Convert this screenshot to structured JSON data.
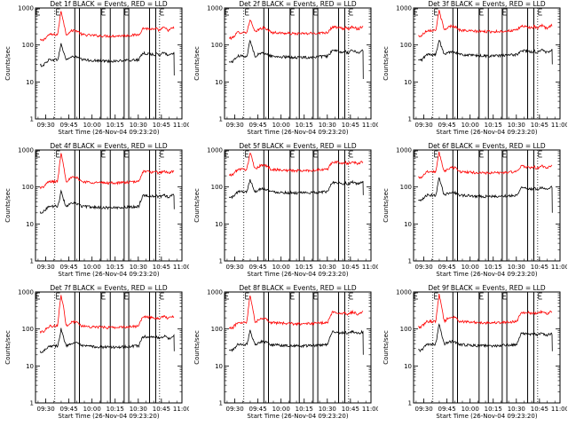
{
  "figure": {
    "background": "#ffffff",
    "axis_color": "#000000",
    "events_color": "#000000",
    "lld_color": "#ff0000"
  },
  "chart_data": [
    {
      "type": "line",
      "title": "Det 1f BLACK = Events, RED = LLD",
      "xlabel": "Start Time (26-Nov-04 09:23:20)",
      "ylabel": "Counts/sec",
      "yscale": "log",
      "ylim": [
        1,
        1000
      ],
      "yticks": [
        "1",
        "10",
        "100",
        "1000"
      ],
      "xlim_minutes": [
        0,
        95
      ],
      "xticks": [
        "09:30",
        "09:45",
        "10:00",
        "10:15",
        "10:30",
        "10:45",
        "11:00"
      ],
      "xtick_minutes": [
        6.67,
        21.67,
        36.67,
        51.67,
        66.67,
        81.67,
        96.67
      ],
      "dotted_markers_minutes": [
        12.5,
        80.5
      ],
      "solid_markers_minutes": [
        25.5,
        28.5,
        42.5,
        48.5,
        57.5,
        60.5,
        74,
        78
      ],
      "flag_markers_minutes": [
        0,
        13,
        42.5,
        57.5,
        80.5
      ],
      "series": [
        {
          "name": "LLD",
          "color": "#ff0000",
          "base": 190,
          "peak": 1050,
          "bump": 1.3,
          "late_rise": 1.5,
          "end": 90,
          "drop_to": 0
        },
        {
          "name": "Events",
          "color": "#000000",
          "base": 40,
          "peak": 130,
          "bump": 1.2,
          "late_rise": 1.5,
          "end": 90,
          "drop_to": 15
        }
      ]
    },
    {
      "type": "line",
      "title": "Det 2f BLACK = Events, RED = LLD",
      "xlabel": "Start Time (26-Nov-04 09:23:20)",
      "ylabel": "Counts/sec",
      "yscale": "log",
      "ylim": [
        1,
        1000
      ],
      "yticks": [
        "1",
        "10",
        "100",
        "1000"
      ],
      "xlim_minutes": [
        0,
        95
      ],
      "xticks": [
        "09:30",
        "09:45",
        "10:00",
        "10:15",
        "10:30",
        "10:45",
        "11:00"
      ],
      "xtick_minutes": [
        6.67,
        21.67,
        36.67,
        51.67,
        66.67,
        81.67,
        96.67
      ],
      "dotted_markers_minutes": [
        12.5,
        80.5
      ],
      "solid_markers_minutes": [
        25.5,
        28.5,
        42.5,
        48.5,
        57.5,
        60.5,
        74,
        78
      ],
      "flag_markers_minutes": [
        0,
        13,
        42.5,
        57.5,
        80.5
      ],
      "series": [
        {
          "name": "LLD",
          "color": "#ff0000",
          "base": 220,
          "peak": 600,
          "bump": 1.3,
          "late_rise": 1.4,
          "end": 90,
          "drop_to": 0
        },
        {
          "name": "Events",
          "color": "#000000",
          "base": 50,
          "peak": 160,
          "bump": 1.2,
          "late_rise": 1.4,
          "end": 90,
          "drop_to": 12
        }
      ]
    },
    {
      "type": "line",
      "title": "Det 3f BLACK = Events, RED = LLD",
      "xlabel": "Start Time (26-Nov-04 09:23:20)",
      "ylabel": "Counts/sec",
      "yscale": "log",
      "ylim": [
        1,
        1000
      ],
      "yticks": [
        "1",
        "10",
        "100",
        "1000"
      ],
      "xlim_minutes": [
        0,
        95
      ],
      "xticks": [
        "09:30",
        "09:45",
        "10:00",
        "10:15",
        "10:30",
        "10:45",
        "11:00"
      ],
      "xtick_minutes": [
        6.67,
        21.67,
        36.67,
        51.67,
        66.67,
        81.67,
        96.67
      ],
      "dotted_markers_minutes": [
        12.5,
        80.5
      ],
      "solid_markers_minutes": [
        25.5,
        28.5,
        42.5,
        48.5,
        57.5,
        60.5,
        74,
        78
      ],
      "flag_markers_minutes": [
        0,
        13,
        42.5,
        57.5,
        80.5
      ],
      "series": [
        {
          "name": "LLD",
          "color": "#ff0000",
          "base": 250,
          "peak": 1050,
          "bump": 1.3,
          "late_rise": 1.3,
          "end": 90,
          "drop_to": 0
        },
        {
          "name": "Events",
          "color": "#000000",
          "base": 55,
          "peak": 170,
          "bump": 1.2,
          "late_rise": 1.3,
          "end": 90,
          "drop_to": 30
        }
      ]
    },
    {
      "type": "line",
      "title": "Det 4f BLACK = Events, RED = LLD",
      "xlabel": "Start Time (26-Nov-04 09:23:20)",
      "ylabel": "Counts/sec",
      "yscale": "log",
      "ylim": [
        1,
        1000
      ],
      "yticks": [
        "1",
        "10",
        "100",
        "1000"
      ],
      "xlim_minutes": [
        0,
        95
      ],
      "xticks": [
        "09:30",
        "09:45",
        "10:00",
        "10:15",
        "10:30",
        "10:45",
        "11:00"
      ],
      "xtick_minutes": [
        6.67,
        21.67,
        36.67,
        51.67,
        66.67,
        81.67,
        96.67
      ],
      "dotted_markers_minutes": [
        12.5,
        80.5
      ],
      "solid_markers_minutes": [
        25.5,
        28.5,
        42.5,
        48.5,
        57.5,
        60.5,
        74,
        78
      ],
      "flag_markers_minutes": [
        0,
        13,
        42.5,
        57.5,
        80.5
      ],
      "series": [
        {
          "name": "LLD",
          "color": "#ff0000",
          "base": 140,
          "peak": 1050,
          "bump": 1.3,
          "late_rise": 1.9,
          "end": 90,
          "drop_to": 0
        },
        {
          "name": "Events",
          "color": "#000000",
          "base": 30,
          "peak": 90,
          "bump": 1.2,
          "late_rise": 2.0,
          "end": 90,
          "drop_to": 25
        }
      ]
    },
    {
      "type": "line",
      "title": "Det 5f BLACK = Events, RED = LLD",
      "xlabel": "Start Time (26-Nov-04 09:23:20)",
      "ylabel": "Counts/sec",
      "yscale": "log",
      "ylim": [
        1,
        1000
      ],
      "yticks": [
        "1",
        "10",
        "100",
        "1000"
      ],
      "xlim_minutes": [
        0,
        95
      ],
      "xticks": [
        "09:30",
        "09:45",
        "10:00",
        "10:15",
        "10:30",
        "10:45",
        "11:00"
      ],
      "xtick_minutes": [
        6.67,
        21.67,
        36.67,
        51.67,
        66.67,
        81.67,
        96.67
      ],
      "dotted_markers_minutes": [
        12.5,
        80.5
      ],
      "solid_markers_minutes": [
        25.5,
        28.5,
        42.5,
        48.5,
        57.5,
        60.5,
        74,
        78
      ],
      "flag_markers_minutes": [
        0,
        13,
        42.5,
        57.5,
        80.5
      ],
      "series": [
        {
          "name": "LLD",
          "color": "#ff0000",
          "base": 300,
          "peak": 1050,
          "bump": 1.3,
          "late_rise": 1.6,
          "end": 90,
          "drop_to": 0
        },
        {
          "name": "Events",
          "color": "#000000",
          "base": 75,
          "peak": 190,
          "bump": 1.2,
          "late_rise": 1.8,
          "end": 90,
          "drop_to": 60
        }
      ]
    },
    {
      "type": "line",
      "title": "Det 6f BLACK = Events, RED = LLD",
      "xlabel": "Start Time (26-Nov-04 09:23:20)",
      "ylabel": "Counts/sec",
      "yscale": "log",
      "ylim": [
        1,
        1000
      ],
      "yticks": [
        "1",
        "10",
        "100",
        "1000"
      ],
      "xlim_minutes": [
        0,
        95
      ],
      "xticks": [
        "09:30",
        "09:45",
        "10:00",
        "10:15",
        "10:30",
        "10:45",
        "11:00"
      ],
      "xtick_minutes": [
        6.67,
        21.67,
        36.67,
        51.67,
        66.67,
        81.67,
        96.67
      ],
      "dotted_markers_minutes": [
        12.5,
        80.5
      ],
      "solid_markers_minutes": [
        25.5,
        28.5,
        42.5,
        48.5,
        57.5,
        60.5,
        74,
        78
      ],
      "flag_markers_minutes": [
        0,
        13,
        42.5,
        57.5,
        80.5
      ],
      "series": [
        {
          "name": "LLD",
          "color": "#ff0000",
          "base": 260,
          "peak": 1050,
          "bump": 1.3,
          "late_rise": 1.4,
          "end": 90,
          "drop_to": 0
        },
        {
          "name": "Events",
          "color": "#000000",
          "base": 60,
          "peak": 230,
          "bump": 1.2,
          "late_rise": 1.6,
          "end": 90,
          "drop_to": 20
        }
      ]
    },
    {
      "type": "line",
      "title": "Det 7f BLACK = Events, RED = LLD",
      "xlabel": "Start Time (26-Nov-04 09:23:20)",
      "ylabel": "Counts/sec",
      "yscale": "log",
      "ylim": [
        1,
        1000
      ],
      "yticks": [
        "1",
        "10",
        "100",
        "1000"
      ],
      "xlim_minutes": [
        0,
        95
      ],
      "xticks": [
        "09:30",
        "09:45",
        "10:00",
        "10:15",
        "10:30",
        "10:45",
        "11:00"
      ],
      "xtick_minutes": [
        6.67,
        21.67,
        36.67,
        51.67,
        66.67,
        81.67,
        96.67
      ],
      "dotted_markers_minutes": [
        12.5,
        80.5
      ],
      "solid_markers_minutes": [
        25.5,
        28.5,
        42.5,
        48.5,
        57.5,
        60.5,
        74,
        78
      ],
      "flag_markers_minutes": [
        0,
        13,
        42.5,
        57.5,
        80.5
      ],
      "series": [
        {
          "name": "LLD",
          "color": "#ff0000",
          "base": 120,
          "peak": 1050,
          "bump": 1.3,
          "late_rise": 1.8,
          "end": 90,
          "drop_to": 0
        },
        {
          "name": "Events",
          "color": "#000000",
          "base": 35,
          "peak": 120,
          "bump": 1.2,
          "late_rise": 1.8,
          "end": 90,
          "drop_to": 25
        }
      ]
    },
    {
      "type": "line",
      "title": "Det 8f BLACK = Events, RED = LLD",
      "xlabel": "Start Time (26-Nov-04 09:23:20)",
      "ylabel": "Counts/sec",
      "yscale": "log",
      "ylim": [
        1,
        1000
      ],
      "yticks": [
        "1",
        "10",
        "100",
        "1000"
      ],
      "xlim_minutes": [
        0,
        95
      ],
      "xticks": [
        "09:30",
        "09:45",
        "10:00",
        "10:15",
        "10:30",
        "10:45",
        "11:00"
      ],
      "xtick_minutes": [
        6.67,
        21.67,
        36.67,
        51.67,
        66.67,
        81.67,
        96.67
      ],
      "dotted_markers_minutes": [
        12.5,
        80.5
      ],
      "solid_markers_minutes": [
        25.5,
        28.5,
        42.5,
        48.5,
        57.5,
        60.5,
        74,
        78
      ],
      "flag_markers_minutes": [
        0,
        13,
        42.5,
        57.5,
        80.5
      ],
      "series": [
        {
          "name": "LLD",
          "color": "#ff0000",
          "base": 150,
          "peak": 1050,
          "bump": 1.3,
          "late_rise": 1.9,
          "end": 90,
          "drop_to": 0
        },
        {
          "name": "Events",
          "color": "#000000",
          "base": 38,
          "peak": 110,
          "bump": 1.2,
          "late_rise": 2.2,
          "end": 90,
          "drop_to": 20
        }
      ]
    },
    {
      "type": "line",
      "title": "Det 9f BLACK = Events, RED = LLD",
      "xlabel": "Start Time (26-Nov-04 09:23:20)",
      "ylabel": "Counts/sec",
      "yscale": "log",
      "ylim": [
        1,
        1000
      ],
      "yticks": [
        "1",
        "10",
        "100",
        "1000"
      ],
      "xlim_minutes": [
        0,
        95
      ],
      "xticks": [
        "09:30",
        "09:45",
        "10:00",
        "10:15",
        "10:30",
        "10:45",
        "11:00"
      ],
      "xtick_minutes": [
        6.67,
        21.67,
        36.67,
        51.67,
        66.67,
        81.67,
        96.67
      ],
      "dotted_markers_minutes": [
        12.5,
        80.5
      ],
      "solid_markers_minutes": [
        25.5,
        28.5,
        42.5,
        48.5,
        57.5,
        60.5,
        74,
        78
      ],
      "flag_markers_minutes": [
        0,
        13,
        42.5,
        57.5,
        80.5
      ],
      "series": [
        {
          "name": "LLD",
          "color": "#ff0000",
          "base": 160,
          "peak": 1050,
          "bump": 1.3,
          "late_rise": 1.8,
          "end": 90,
          "drop_to": 0
        },
        {
          "name": "Events",
          "color": "#000000",
          "base": 38,
          "peak": 170,
          "bump": 1.2,
          "late_rise": 2.0,
          "end": 90,
          "drop_to": 25
        }
      ]
    }
  ]
}
